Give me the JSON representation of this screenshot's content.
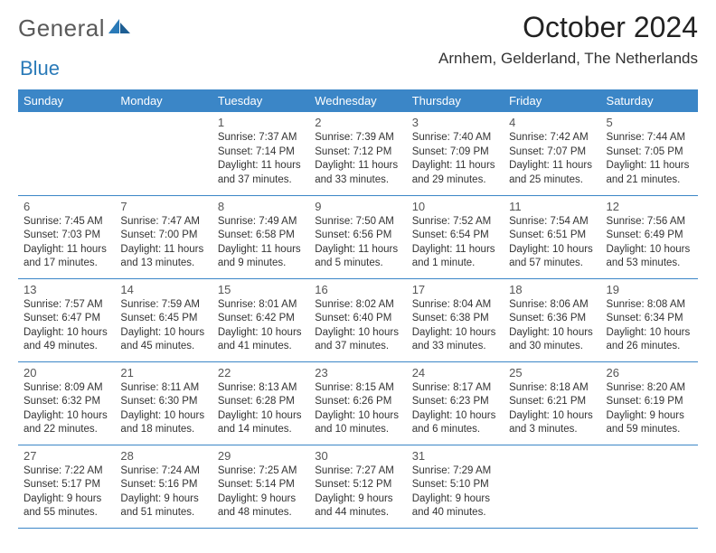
{
  "header": {
    "logo_general": "General",
    "logo_blue": "Blue",
    "month_title": "October 2024",
    "location": "Arnhem, Gelderland, The Netherlands"
  },
  "colors": {
    "header_bg": "#3b86c7",
    "header_text": "#ffffff",
    "row_border": "#3b86c7",
    "text": "#333333",
    "logo_gray": "#5a5a5a",
    "logo_blue": "#2a7ab8"
  },
  "daynames": [
    "Sunday",
    "Monday",
    "Tuesday",
    "Wednesday",
    "Thursday",
    "Friday",
    "Saturday"
  ],
  "weeks": [
    [
      null,
      null,
      {
        "n": "1",
        "sunrise": "Sunrise: 7:37 AM",
        "sunset": "Sunset: 7:14 PM",
        "daylight": "Daylight: 11 hours and 37 minutes."
      },
      {
        "n": "2",
        "sunrise": "Sunrise: 7:39 AM",
        "sunset": "Sunset: 7:12 PM",
        "daylight": "Daylight: 11 hours and 33 minutes."
      },
      {
        "n": "3",
        "sunrise": "Sunrise: 7:40 AM",
        "sunset": "Sunset: 7:09 PM",
        "daylight": "Daylight: 11 hours and 29 minutes."
      },
      {
        "n": "4",
        "sunrise": "Sunrise: 7:42 AM",
        "sunset": "Sunset: 7:07 PM",
        "daylight": "Daylight: 11 hours and 25 minutes."
      },
      {
        "n": "5",
        "sunrise": "Sunrise: 7:44 AM",
        "sunset": "Sunset: 7:05 PM",
        "daylight": "Daylight: 11 hours and 21 minutes."
      }
    ],
    [
      {
        "n": "6",
        "sunrise": "Sunrise: 7:45 AM",
        "sunset": "Sunset: 7:03 PM",
        "daylight": "Daylight: 11 hours and 17 minutes."
      },
      {
        "n": "7",
        "sunrise": "Sunrise: 7:47 AM",
        "sunset": "Sunset: 7:00 PM",
        "daylight": "Daylight: 11 hours and 13 minutes."
      },
      {
        "n": "8",
        "sunrise": "Sunrise: 7:49 AM",
        "sunset": "Sunset: 6:58 PM",
        "daylight": "Daylight: 11 hours and 9 minutes."
      },
      {
        "n": "9",
        "sunrise": "Sunrise: 7:50 AM",
        "sunset": "Sunset: 6:56 PM",
        "daylight": "Daylight: 11 hours and 5 minutes."
      },
      {
        "n": "10",
        "sunrise": "Sunrise: 7:52 AM",
        "sunset": "Sunset: 6:54 PM",
        "daylight": "Daylight: 11 hours and 1 minute."
      },
      {
        "n": "11",
        "sunrise": "Sunrise: 7:54 AM",
        "sunset": "Sunset: 6:51 PM",
        "daylight": "Daylight: 10 hours and 57 minutes."
      },
      {
        "n": "12",
        "sunrise": "Sunrise: 7:56 AM",
        "sunset": "Sunset: 6:49 PM",
        "daylight": "Daylight: 10 hours and 53 minutes."
      }
    ],
    [
      {
        "n": "13",
        "sunrise": "Sunrise: 7:57 AM",
        "sunset": "Sunset: 6:47 PM",
        "daylight": "Daylight: 10 hours and 49 minutes."
      },
      {
        "n": "14",
        "sunrise": "Sunrise: 7:59 AM",
        "sunset": "Sunset: 6:45 PM",
        "daylight": "Daylight: 10 hours and 45 minutes."
      },
      {
        "n": "15",
        "sunrise": "Sunrise: 8:01 AM",
        "sunset": "Sunset: 6:42 PM",
        "daylight": "Daylight: 10 hours and 41 minutes."
      },
      {
        "n": "16",
        "sunrise": "Sunrise: 8:02 AM",
        "sunset": "Sunset: 6:40 PM",
        "daylight": "Daylight: 10 hours and 37 minutes."
      },
      {
        "n": "17",
        "sunrise": "Sunrise: 8:04 AM",
        "sunset": "Sunset: 6:38 PM",
        "daylight": "Daylight: 10 hours and 33 minutes."
      },
      {
        "n": "18",
        "sunrise": "Sunrise: 8:06 AM",
        "sunset": "Sunset: 6:36 PM",
        "daylight": "Daylight: 10 hours and 30 minutes."
      },
      {
        "n": "19",
        "sunrise": "Sunrise: 8:08 AM",
        "sunset": "Sunset: 6:34 PM",
        "daylight": "Daylight: 10 hours and 26 minutes."
      }
    ],
    [
      {
        "n": "20",
        "sunrise": "Sunrise: 8:09 AM",
        "sunset": "Sunset: 6:32 PM",
        "daylight": "Daylight: 10 hours and 22 minutes."
      },
      {
        "n": "21",
        "sunrise": "Sunrise: 8:11 AM",
        "sunset": "Sunset: 6:30 PM",
        "daylight": "Daylight: 10 hours and 18 minutes."
      },
      {
        "n": "22",
        "sunrise": "Sunrise: 8:13 AM",
        "sunset": "Sunset: 6:28 PM",
        "daylight": "Daylight: 10 hours and 14 minutes."
      },
      {
        "n": "23",
        "sunrise": "Sunrise: 8:15 AM",
        "sunset": "Sunset: 6:26 PM",
        "daylight": "Daylight: 10 hours and 10 minutes."
      },
      {
        "n": "24",
        "sunrise": "Sunrise: 8:17 AM",
        "sunset": "Sunset: 6:23 PM",
        "daylight": "Daylight: 10 hours and 6 minutes."
      },
      {
        "n": "25",
        "sunrise": "Sunrise: 8:18 AM",
        "sunset": "Sunset: 6:21 PM",
        "daylight": "Daylight: 10 hours and 3 minutes."
      },
      {
        "n": "26",
        "sunrise": "Sunrise: 8:20 AM",
        "sunset": "Sunset: 6:19 PM",
        "daylight": "Daylight: 9 hours and 59 minutes."
      }
    ],
    [
      {
        "n": "27",
        "sunrise": "Sunrise: 7:22 AM",
        "sunset": "Sunset: 5:17 PM",
        "daylight": "Daylight: 9 hours and 55 minutes."
      },
      {
        "n": "28",
        "sunrise": "Sunrise: 7:24 AM",
        "sunset": "Sunset: 5:16 PM",
        "daylight": "Daylight: 9 hours and 51 minutes."
      },
      {
        "n": "29",
        "sunrise": "Sunrise: 7:25 AM",
        "sunset": "Sunset: 5:14 PM",
        "daylight": "Daylight: 9 hours and 48 minutes."
      },
      {
        "n": "30",
        "sunrise": "Sunrise: 7:27 AM",
        "sunset": "Sunset: 5:12 PM",
        "daylight": "Daylight: 9 hours and 44 minutes."
      },
      {
        "n": "31",
        "sunrise": "Sunrise: 7:29 AM",
        "sunset": "Sunset: 5:10 PM",
        "daylight": "Daylight: 9 hours and 40 minutes."
      },
      null,
      null
    ]
  ]
}
